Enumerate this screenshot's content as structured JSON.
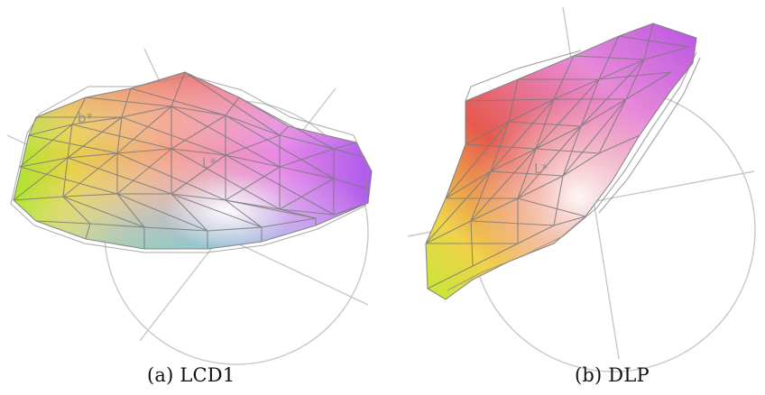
{
  "figure": {
    "panels": [
      {
        "caption": "(a) LCD1",
        "axis_labels": [
          "L*",
          "b*"
        ]
      },
      {
        "caption": "(b) DLP",
        "axis_labels": [
          "L*"
        ]
      }
    ]
  }
}
